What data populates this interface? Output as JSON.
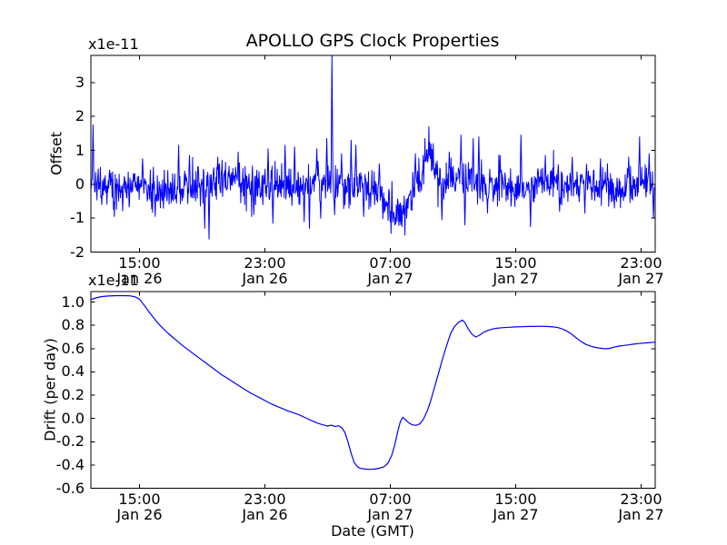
{
  "figure": {
    "background": "#ffffff",
    "axis_color": "#000000",
    "text_color": "#000000"
  },
  "chart_data": [
    {
      "type": "line",
      "title": "APOLLO GPS Clock Properties",
      "ylabel": "Offset",
      "offset_text": "x1e-11",
      "xlim": [
        11.9,
        47.9
      ],
      "ylim": [
        -2,
        3.8
      ],
      "grid": false,
      "legend": "none",
      "xticks": [
        {
          "t": 15,
          "lines": [
            "15:00",
            "Jan 26"
          ]
        },
        {
          "t": 23,
          "lines": [
            "23:00",
            "Jan 26"
          ]
        },
        {
          "t": 31,
          "lines": [
            "07:00",
            "Jan 27"
          ]
        },
        {
          "t": 39,
          "lines": [
            "15:00",
            "Jan 27"
          ]
        },
        {
          "t": 47,
          "lines": [
            "23:00",
            "Jan 27"
          ]
        }
      ],
      "yticks": [
        {
          "v": 3,
          "label": "3"
        },
        {
          "v": 2,
          "label": "2"
        },
        {
          "v": 1,
          "label": "1"
        },
        {
          "v": 0,
          "label": "0"
        },
        {
          "v": -1,
          "label": "-1"
        },
        {
          "v": -2,
          "label": "-2"
        }
      ],
      "series": [
        {
          "name": "gps-clock-offset",
          "color": "#0000ff",
          "synth": {
            "seed": 20,
            "n": 1300,
            "mean": -0.04,
            "std": 0.28,
            "wander": [
              {
                "period": 7.0,
                "amp": 0.1,
                "phase": 0.0
              },
              {
                "period": 2.9,
                "amp": 0.07,
                "phase": 1.3
              }
            ],
            "broad": [
              {
                "t": 14.5,
                "sigma": 1.5,
                "amp": -0.12
              },
              {
                "t": 24.3,
                "sigma": 1.2,
                "amp": 0.12
              },
              {
                "t": 29.8,
                "sigma": 0.8,
                "amp": -0.15
              },
              {
                "t": 31.55,
                "sigma": 0.6,
                "amp": -0.75
              },
              {
                "t": 33.45,
                "sigma": 0.4,
                "amp": 0.9
              },
              {
                "t": 36.6,
                "sigma": 0.9,
                "amp": 0.15
              }
            ],
            "spikes": [
              [
                12.05,
                1.75
              ],
              [
                12.6,
                -0.6
              ],
              [
                13.4,
                -0.95
              ],
              [
                15.2,
                0.75
              ],
              [
                16.0,
                -0.95
              ],
              [
                17.5,
                1.15
              ],
              [
                18.2,
                0.85
              ],
              [
                19.15,
                -1.3
              ],
              [
                19.45,
                -1.62
              ],
              [
                20.0,
                0.8
              ],
              [
                21.3,
                0.95
              ],
              [
                22.3,
                -0.9
              ],
              [
                23.2,
                1.05
              ],
              [
                23.5,
                -1.15
              ],
              [
                24.3,
                1.15
              ],
              [
                24.9,
                1.1
              ],
              [
                25.5,
                -1.1
              ],
              [
                25.85,
                -1.3
              ],
              [
                26.3,
                1.05
              ],
              [
                26.55,
                -1.0
              ],
              [
                26.95,
                1.35
              ],
              [
                27.29,
                3.85
              ],
              [
                27.45,
                -0.9
              ],
              [
                27.9,
                0.9
              ],
              [
                28.5,
                1.3
              ],
              [
                28.8,
                1.15
              ],
              [
                29.3,
                -0.95
              ],
              [
                30.3,
                0.6
              ],
              [
                31.05,
                -1.45
              ],
              [
                31.6,
                -1.1
              ],
              [
                31.95,
                -1.5
              ],
              [
                32.6,
                0.9
              ],
              [
                33.2,
                1.35
              ],
              [
                33.45,
                1.7
              ],
              [
                33.75,
                1.2
              ],
              [
                34.3,
                -1.05
              ],
              [
                34.75,
                0.95
              ],
              [
                35.5,
                1.45
              ],
              [
                35.75,
                -1.2
              ],
              [
                36.3,
                1.35
              ],
              [
                36.65,
                1.4
              ],
              [
                37.2,
                -0.85
              ],
              [
                38.0,
                0.85
              ],
              [
                39.35,
                1.45
              ],
              [
                39.95,
                -1.25
              ],
              [
                40.9,
                0.85
              ],
              [
                41.8,
                -0.8
              ],
              [
                42.6,
                0.8
              ],
              [
                43.4,
                -0.85
              ],
              [
                44.4,
                0.75
              ],
              [
                45.3,
                -0.7
              ],
              [
                46.2,
                0.8
              ],
              [
                46.9,
                1.4
              ],
              [
                47.5,
                0.9
              ],
              [
                47.8,
                -1.0
              ]
            ]
          }
        }
      ]
    },
    {
      "type": "line",
      "xlabel": "Date (GMT)",
      "ylabel": "Drift (per day)",
      "offset_text": "x1e-11",
      "xlim": [
        11.9,
        47.9
      ],
      "ylim": [
        -0.6,
        1.09
      ],
      "grid": false,
      "legend": "none",
      "xticks": [
        {
          "t": 15,
          "lines": [
            "15:00",
            "Jan 26"
          ]
        },
        {
          "t": 23,
          "lines": [
            "23:00",
            "Jan 26"
          ]
        },
        {
          "t": 31,
          "lines": [
            "07:00",
            "Jan 27"
          ]
        },
        {
          "t": 39,
          "lines": [
            "15:00",
            "Jan 27"
          ]
        },
        {
          "t": 47,
          "lines": [
            "23:00",
            "Jan 27"
          ]
        }
      ],
      "yticks": [
        {
          "v": 1.0,
          "label": "1.0"
        },
        {
          "v": 0.8,
          "label": "0.8"
        },
        {
          "v": 0.6,
          "label": "0.6"
        },
        {
          "v": 0.4,
          "label": "0.4"
        },
        {
          "v": 0.2,
          "label": "0.2"
        },
        {
          "v": 0.0,
          "label": "0.0"
        },
        {
          "v": -0.2,
          "label": "-0.2"
        },
        {
          "v": -0.4,
          "label": "-0.4"
        },
        {
          "v": -0.6,
          "label": "-0.6"
        }
      ],
      "series": [
        {
          "name": "gps-clock-drift",
          "color": "#0000ff",
          "points": [
            [
              11.87,
              1.02
            ],
            [
              12.2,
              1.035
            ],
            [
              12.6,
              1.047
            ],
            [
              13.0,
              1.052
            ],
            [
              13.5,
              1.055
            ],
            [
              14.0,
              1.055
            ],
            [
              14.4,
              1.053
            ],
            [
              14.72,
              1.045
            ],
            [
              15.0,
              1.025
            ],
            [
              15.2,
              0.99
            ],
            [
              15.4,
              0.955
            ],
            [
              15.64,
              0.91
            ],
            [
              15.9,
              0.865
            ],
            [
              16.2,
              0.815
            ],
            [
              16.5,
              0.775
            ],
            [
              16.8,
              0.735
            ],
            [
              17.1,
              0.7
            ],
            [
              17.45,
              0.66
            ],
            [
              17.8,
              0.62
            ],
            [
              18.15,
              0.585
            ],
            [
              18.5,
              0.55
            ],
            [
              18.85,
              0.515
            ],
            [
              19.2,
              0.48
            ],
            [
              19.55,
              0.445
            ],
            [
              19.9,
              0.41
            ],
            [
              20.25,
              0.375
            ],
            [
              20.6,
              0.345
            ],
            [
              20.95,
              0.315
            ],
            [
              21.3,
              0.285
            ],
            [
              21.65,
              0.255
            ],
            [
              22.0,
              0.225
            ],
            [
              22.35,
              0.2
            ],
            [
              22.7,
              0.175
            ],
            [
              23.05,
              0.15
            ],
            [
              23.4,
              0.125
            ],
            [
              23.75,
              0.105
            ],
            [
              24.1,
              0.085
            ],
            [
              24.45,
              0.065
            ],
            [
              24.8,
              0.05
            ],
            [
              25.2,
              0.03
            ],
            [
              25.6,
              0.005
            ],
            [
              26.0,
              -0.02
            ],
            [
              26.35,
              -0.04
            ],
            [
              26.7,
              -0.055
            ],
            [
              27.0,
              -0.065
            ],
            [
              27.25,
              -0.058
            ],
            [
              27.5,
              -0.07
            ],
            [
              27.7,
              -0.063
            ],
            [
              27.9,
              -0.08
            ],
            [
              28.1,
              -0.12
            ],
            [
              28.3,
              -0.2
            ],
            [
              28.5,
              -0.3
            ],
            [
              28.7,
              -0.38
            ],
            [
              28.9,
              -0.415
            ],
            [
              29.1,
              -0.43
            ],
            [
              29.4,
              -0.435
            ],
            [
              29.7,
              -0.438
            ],
            [
              30.0,
              -0.435
            ],
            [
              30.3,
              -0.428
            ],
            [
              30.6,
              -0.415
            ],
            [
              30.85,
              -0.385
            ],
            [
              31.1,
              -0.315
            ],
            [
              31.3,
              -0.22
            ],
            [
              31.5,
              -0.1
            ],
            [
              31.65,
              -0.025
            ],
            [
              31.8,
              0.01
            ],
            [
              31.95,
              -0.01
            ],
            [
              32.15,
              -0.035
            ],
            [
              32.4,
              -0.055
            ],
            [
              32.65,
              -0.06
            ],
            [
              32.9,
              -0.045
            ],
            [
              33.1,
              -0.01
            ],
            [
              33.35,
              0.06
            ],
            [
              33.6,
              0.16
            ],
            [
              33.85,
              0.28
            ],
            [
              34.1,
              0.4
            ],
            [
              34.35,
              0.52
            ],
            [
              34.6,
              0.63
            ],
            [
              34.85,
              0.73
            ],
            [
              35.1,
              0.79
            ],
            [
              35.35,
              0.825
            ],
            [
              35.6,
              0.845
            ],
            [
              35.75,
              0.825
            ],
            [
              35.95,
              0.775
            ],
            [
              36.2,
              0.725
            ],
            [
              36.45,
              0.7
            ],
            [
              36.7,
              0.715
            ],
            [
              36.95,
              0.74
            ],
            [
              37.2,
              0.755
            ],
            [
              37.5,
              0.768
            ],
            [
              37.8,
              0.775
            ],
            [
              38.2,
              0.78
            ],
            [
              38.6,
              0.783
            ],
            [
              39.0,
              0.786
            ],
            [
              39.4,
              0.788
            ],
            [
              39.8,
              0.79
            ],
            [
              40.2,
              0.79
            ],
            [
              40.6,
              0.792
            ],
            [
              41.0,
              0.79
            ],
            [
              41.4,
              0.786
            ],
            [
              41.7,
              0.78
            ],
            [
              42.0,
              0.768
            ],
            [
              42.3,
              0.748
            ],
            [
              42.6,
              0.72
            ],
            [
              42.9,
              0.688
            ],
            [
              43.2,
              0.658
            ],
            [
              43.5,
              0.635
            ],
            [
              43.8,
              0.62
            ],
            [
              44.1,
              0.61
            ],
            [
              44.4,
              0.603
            ],
            [
              44.7,
              0.598
            ],
            [
              45.0,
              0.602
            ],
            [
              45.3,
              0.613
            ],
            [
              45.6,
              0.622
            ],
            [
              45.9,
              0.627
            ],
            [
              46.2,
              0.632
            ],
            [
              46.5,
              0.638
            ],
            [
              46.8,
              0.643
            ],
            [
              47.1,
              0.647
            ],
            [
              47.4,
              0.65
            ],
            [
              47.9,
              0.655
            ]
          ]
        }
      ]
    }
  ]
}
